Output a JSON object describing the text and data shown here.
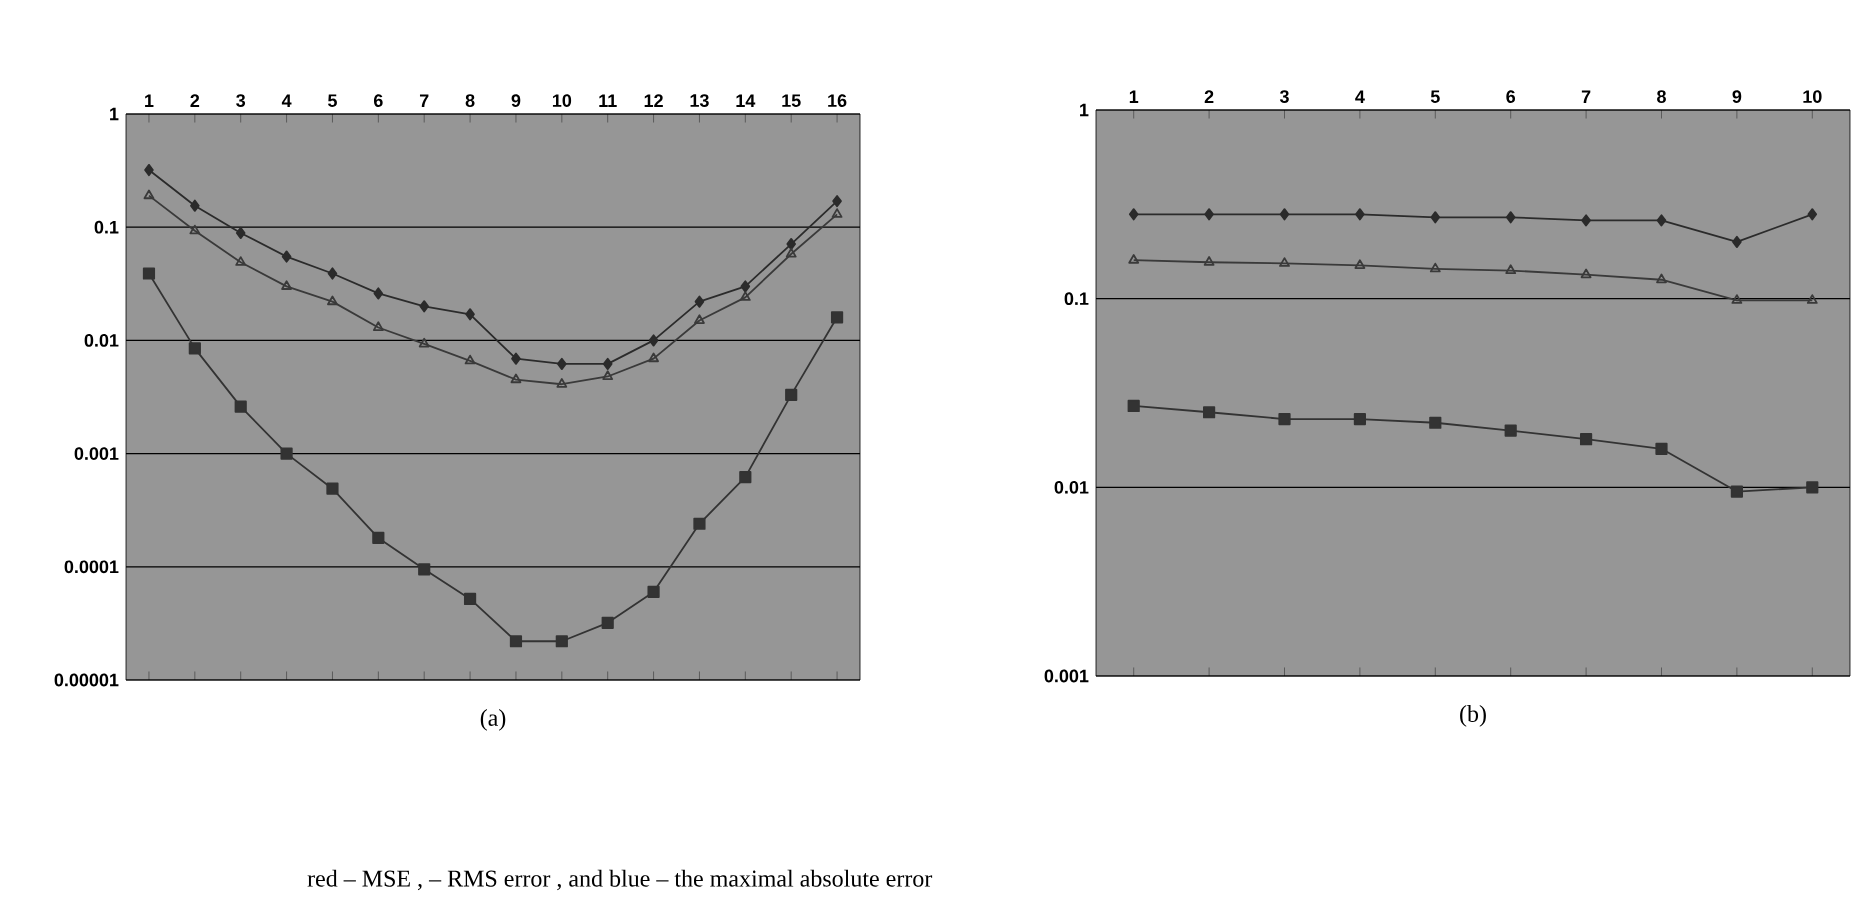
{
  "chart_data": [
    {
      "type": "line",
      "title": "(a)",
      "categories": [
        "1",
        "2",
        "3",
        "4",
        "5",
        "6",
        "7",
        "8",
        "9",
        "10",
        "11",
        "12",
        "13",
        "14",
        "15",
        "16"
      ],
      "log": "y",
      "ylim": [
        1e-05,
        1
      ],
      "yticks": [
        {
          "value": 1,
          "label": "1"
        },
        {
          "value": 0.1,
          "label": "0.1"
        },
        {
          "value": 0.01,
          "label": "0.01"
        },
        {
          "value": 0.001,
          "label": "0.001"
        },
        {
          "value": 0.0001,
          "label": "0.0001"
        },
        {
          "value": 1e-05,
          "label": "0.00001"
        }
      ],
      "grid": "y",
      "annotations": [
        "red – MSE ,            – RMS error , and blue – the maximal absolute error"
      ],
      "series": [
        {
          "color": "#2b2b2b",
          "marker": "diamond",
          "values": [
            0.32,
            0.155,
            0.089,
            0.055,
            0.039,
            0.026,
            0.02,
            0.017,
            0.0069,
            0.0062,
            0.0062,
            0.01,
            0.022,
            0.03,
            0.071,
            0.17
          ]
        },
        {
          "color": "#3a3a3a",
          "marker": "triangle",
          "values": [
            0.19,
            0.093,
            0.049,
            0.03,
            0.022,
            0.013,
            0.0093,
            0.0066,
            0.0045,
            0.0041,
            0.0048,
            0.0069,
            0.015,
            0.024,
            0.058,
            0.13
          ]
        },
        {
          "color": "#333333",
          "marker": "square",
          "values": [
            0.039,
            0.0085,
            0.0026,
            0.001,
            0.00049,
            0.00018,
            9.5e-05,
            5.2e-05,
            2.2e-05,
            2.2e-05,
            3.2e-05,
            6e-05,
            0.00024,
            0.00062,
            0.0033,
            0.016
          ]
        }
      ]
    },
    {
      "type": "line",
      "title": "(b)",
      "categories": [
        "1",
        "2",
        "3",
        "4",
        "5",
        "6",
        "7",
        "8",
        "9",
        "10"
      ],
      "log": "y",
      "ylim": [
        0.001,
        1
      ],
      "yticks": [
        {
          "value": 1,
          "label": "1"
        },
        {
          "value": 0.1,
          "label": "0.1"
        },
        {
          "value": 0.01,
          "label": "0.01"
        },
        {
          "value": 0.001,
          "label": "0.001"
        }
      ],
      "grid": "y",
      "series": [
        {
          "color": "#2b2b2b",
          "marker": "diamond",
          "values": [
            0.28,
            0.28,
            0.28,
            0.28,
            0.27,
            0.27,
            0.26,
            0.26,
            0.2,
            0.28
          ]
        },
        {
          "color": "#3a3a3a",
          "marker": "triangle",
          "values": [
            0.16,
            0.156,
            0.154,
            0.15,
            0.144,
            0.141,
            0.134,
            0.126,
            0.098,
            0.098
          ]
        },
        {
          "color": "#333333",
          "marker": "square",
          "values": [
            0.027,
            0.025,
            0.023,
            0.023,
            0.022,
            0.02,
            0.018,
            0.016,
            0.0095,
            0.01
          ]
        }
      ]
    }
  ]
}
